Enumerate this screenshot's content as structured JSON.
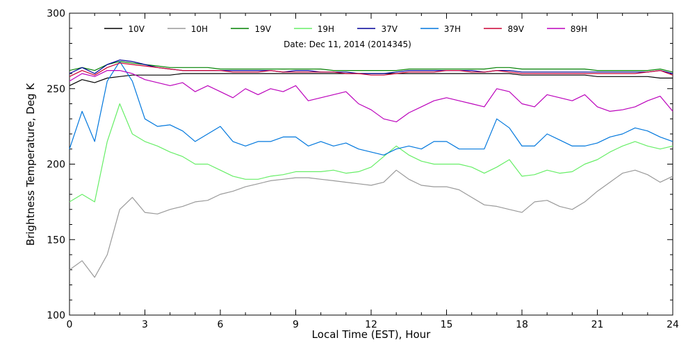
{
  "chart_data": {
    "type": "line",
    "title": "",
    "subtitle": "Date: Dec 11, 2014 (2014345)",
    "xlabel": "Local Time (EST), Hour",
    "ylabel": "Brightness Temperature, Deg K",
    "xlim": [
      0,
      24
    ],
    "ylim": [
      100,
      300
    ],
    "xticks": [
      0,
      3,
      6,
      9,
      12,
      15,
      18,
      21,
      24
    ],
    "yticks": [
      100,
      150,
      200,
      250,
      300
    ],
    "grid": false,
    "legend_position": "top",
    "x": [
      0,
      0.5,
      1,
      1.5,
      2,
      2.5,
      3,
      3.5,
      4,
      4.5,
      5,
      5.5,
      6,
      6.5,
      7,
      7.5,
      8,
      8.5,
      9,
      9.5,
      10,
      10.5,
      11,
      11.5,
      12,
      12.5,
      13,
      13.5,
      14,
      14.5,
      15,
      15.5,
      16,
      16.5,
      17,
      17.5,
      18,
      18.5,
      19,
      19.5,
      20,
      20.5,
      21,
      21.5,
      22,
      22.5,
      23,
      23.5,
      24
    ],
    "series": [
      {
        "name": "10V",
        "color": "#000000",
        "values": [
          252,
          256,
          254,
          257,
          258,
          259,
          259,
          259,
          259,
          260,
          260,
          260,
          260,
          260,
          260,
          260,
          260,
          260,
          260,
          260,
          260,
          260,
          260,
          260,
          260,
          260,
          260,
          260,
          260,
          260,
          260,
          260,
          260,
          260,
          260,
          260,
          259,
          259,
          259,
          259,
          259,
          259,
          258,
          258,
          258,
          258,
          258,
          257,
          257
        ]
      },
      {
        "name": "10H",
        "color": "#999999",
        "values": [
          130,
          136,
          125,
          140,
          170,
          178,
          168,
          167,
          170,
          172,
          175,
          176,
          180,
          182,
          185,
          187,
          189,
          190,
          191,
          191,
          190,
          189,
          188,
          187,
          186,
          188,
          196,
          190,
          186,
          185,
          185,
          183,
          178,
          173,
          172,
          170,
          168,
          175,
          176,
          172,
          170,
          175,
          182,
          188,
          194,
          196,
          193,
          188,
          192
        ]
      },
      {
        "name": "19V",
        "color": "#008000",
        "values": [
          262,
          264,
          262,
          266,
          268,
          267,
          266,
          265,
          264,
          264,
          264,
          264,
          263,
          263,
          263,
          263,
          263,
          263,
          263,
          263,
          263,
          262,
          262,
          262,
          262,
          262,
          262,
          263,
          263,
          263,
          263,
          263,
          263,
          263,
          264,
          264,
          263,
          263,
          263,
          263,
          263,
          263,
          262,
          262,
          262,
          262,
          262,
          263,
          261
        ]
      },
      {
        "name": "19H",
        "color": "#66ee66",
        "values": [
          175,
          180,
          175,
          215,
          240,
          220,
          215,
          212,
          208,
          205,
          200,
          200,
          196,
          192,
          190,
          190,
          192,
          193,
          195,
          195,
          195,
          196,
          194,
          195,
          198,
          205,
          212,
          206,
          202,
          200,
          200,
          200,
          198,
          194,
          198,
          203,
          192,
          193,
          196,
          194,
          195,
          200,
          203,
          208,
          212,
          215,
          212,
          210,
          212
        ]
      },
      {
        "name": "37V",
        "color": "#000099",
        "values": [
          260,
          264,
          260,
          266,
          269,
          268,
          266,
          264,
          263,
          262,
          262,
          262,
          262,
          262,
          262,
          262,
          262,
          261,
          262,
          262,
          261,
          261,
          261,
          260,
          260,
          260,
          261,
          262,
          262,
          262,
          262,
          262,
          262,
          261,
          262,
          262,
          261,
          261,
          261,
          261,
          261,
          261,
          261,
          261,
          261,
          261,
          261,
          262,
          260
        ]
      },
      {
        "name": "37H",
        "color": "#0077dd",
        "values": [
          210,
          235,
          215,
          255,
          268,
          255,
          230,
          225,
          226,
          222,
          215,
          220,
          225,
          215,
          212,
          215,
          215,
          218,
          218,
          212,
          215,
          212,
          214,
          210,
          208,
          206,
          210,
          212,
          210,
          215,
          215,
          210,
          210,
          210,
          230,
          224,
          212,
          212,
          220,
          216,
          212,
          212,
          214,
          218,
          220,
          224,
          222,
          218,
          215
        ]
      },
      {
        "name": "89V",
        "color": "#cc0033",
        "values": [
          258,
          262,
          259,
          264,
          267,
          266,
          265,
          264,
          263,
          262,
          262,
          262,
          262,
          261,
          261,
          261,
          262,
          261,
          261,
          261,
          261,
          261,
          260,
          260,
          259,
          259,
          260,
          261,
          261,
          261,
          262,
          262,
          261,
          261,
          262,
          261,
          260,
          260,
          260,
          260,
          260,
          260,
          260,
          260,
          260,
          260,
          261,
          262,
          259
        ]
      },
      {
        "name": "89H",
        "color": "#bb00bb",
        "values": [
          255,
          260,
          258,
          262,
          262,
          260,
          256,
          254,
          252,
          254,
          248,
          252,
          248,
          244,
          250,
          246,
          250,
          248,
          252,
          242,
          244,
          246,
          248,
          240,
          236,
          230,
          228,
          234,
          238,
          242,
          244,
          242,
          240,
          238,
          250,
          248,
          240,
          238,
          246,
          244,
          242,
          246,
          238,
          235,
          236,
          238,
          242,
          245,
          235
        ]
      }
    ]
  }
}
